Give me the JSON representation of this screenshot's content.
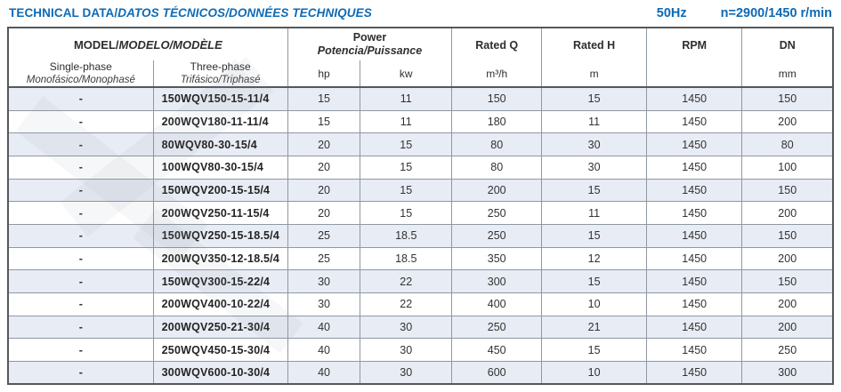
{
  "header": {
    "title_main": "TECHNICAL DATA/",
    "title_italic": "DATOS TÉCNICOS/DONNÉES TECHNIQUES",
    "frequency": "50Hz",
    "speed": "n=2900/1450 r/min"
  },
  "table": {
    "model_group": {
      "label": "MODEL/",
      "label_italic": "MODELO/MODÈLE"
    },
    "power_group": {
      "label": "Power",
      "label_italic": "Potencia/Puissance"
    },
    "columns": {
      "single_phase": {
        "label": "Single-phase",
        "sublabel": "Monofásico/Monophasé"
      },
      "three_phase": {
        "label": "Three-phase",
        "sublabel": "Trifásico/Triphasé"
      },
      "hp": "hp",
      "kw": "kw",
      "rated_q": {
        "label": "Rated Q",
        "unit": "m³/h"
      },
      "rated_h": {
        "label": "Rated H",
        "unit": "m"
      },
      "rpm": {
        "label": "RPM",
        "unit": ""
      },
      "dn": {
        "label": "DN",
        "unit": "mm"
      }
    },
    "rows": [
      {
        "single_phase": "-",
        "three_phase": "150WQV150-15-11/4",
        "hp": "15",
        "kw": "11",
        "rated_q": "150",
        "rated_h": "15",
        "rpm": "1450",
        "dn": "150"
      },
      {
        "single_phase": "-",
        "three_phase": "200WQV180-11-11/4",
        "hp": "15",
        "kw": "11",
        "rated_q": "180",
        "rated_h": "11",
        "rpm": "1450",
        "dn": "200"
      },
      {
        "single_phase": "-",
        "three_phase": "80WQV80-30-15/4",
        "hp": "20",
        "kw": "15",
        "rated_q": "80",
        "rated_h": "30",
        "rpm": "1450",
        "dn": "80"
      },
      {
        "single_phase": "-",
        "three_phase": "100WQV80-30-15/4",
        "hp": "20",
        "kw": "15",
        "rated_q": "80",
        "rated_h": "30",
        "rpm": "1450",
        "dn": "100"
      },
      {
        "single_phase": "-",
        "three_phase": "150WQV200-15-15/4",
        "hp": "20",
        "kw": "15",
        "rated_q": "200",
        "rated_h": "15",
        "rpm": "1450",
        "dn": "150"
      },
      {
        "single_phase": "-",
        "three_phase": "200WQV250-11-15/4",
        "hp": "20",
        "kw": "15",
        "rated_q": "250",
        "rated_h": "11",
        "rpm": "1450",
        "dn": "200"
      },
      {
        "single_phase": "-",
        "three_phase": "150WQV250-15-18.5/4",
        "hp": "25",
        "kw": "18.5",
        "rated_q": "250",
        "rated_h": "15",
        "rpm": "1450",
        "dn": "150"
      },
      {
        "single_phase": "-",
        "three_phase": "200WQV350-12-18.5/4",
        "hp": "25",
        "kw": "18.5",
        "rated_q": "350",
        "rated_h": "12",
        "rpm": "1450",
        "dn": "200"
      },
      {
        "single_phase": "-",
        "three_phase": "150WQV300-15-22/4",
        "hp": "30",
        "kw": "22",
        "rated_q": "300",
        "rated_h": "15",
        "rpm": "1450",
        "dn": "150"
      },
      {
        "single_phase": "-",
        "three_phase": "200WQV400-10-22/4",
        "hp": "30",
        "kw": "22",
        "rated_q": "400",
        "rated_h": "10",
        "rpm": "1450",
        "dn": "200"
      },
      {
        "single_phase": "-",
        "three_phase": "200WQV250-21-30/4",
        "hp": "40",
        "kw": "30",
        "rated_q": "250",
        "rated_h": "21",
        "rpm": "1450",
        "dn": "200"
      },
      {
        "single_phase": "-",
        "three_phase": "250WQV450-15-30/4",
        "hp": "40",
        "kw": "30",
        "rated_q": "450",
        "rated_h": "15",
        "rpm": "1450",
        "dn": "250"
      },
      {
        "single_phase": "-",
        "three_phase": "300WQV600-10-30/4",
        "hp": "40",
        "kw": "30",
        "rated_q": "600",
        "rated_h": "10",
        "rpm": "1450",
        "dn": "300"
      }
    ]
  },
  "colors": {
    "accent_blue": "#0d6ab5",
    "row_shade": "#e8ecf4"
  }
}
